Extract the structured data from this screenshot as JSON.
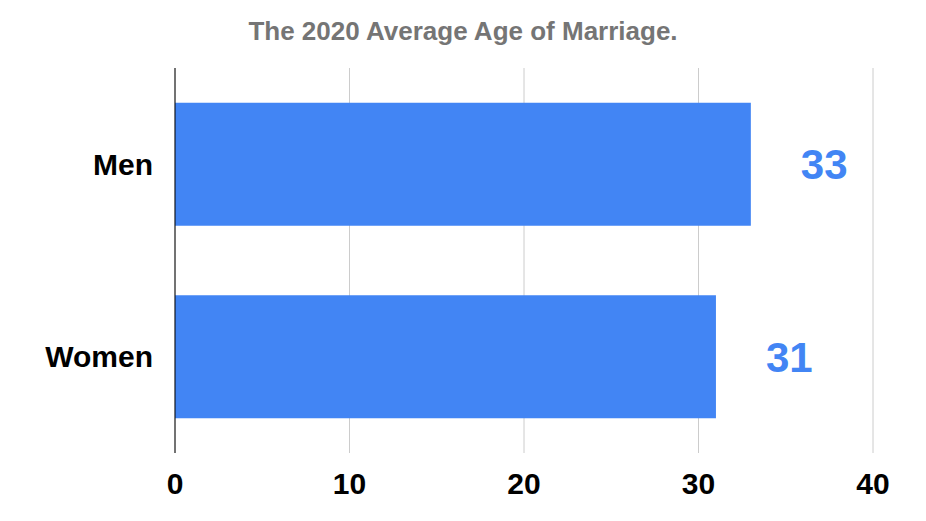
{
  "chart_data": {
    "type": "bar",
    "title": "The 2020 Average Age of Marriage.",
    "orientation": "horizontal",
    "categories": [
      "Men",
      "Women"
    ],
    "values": [
      33,
      31
    ],
    "color": "#4285f4",
    "xlim": [
      0,
      40
    ],
    "xticks": [
      0,
      10,
      20,
      30,
      40
    ],
    "grid": true,
    "data_labels": true
  }
}
